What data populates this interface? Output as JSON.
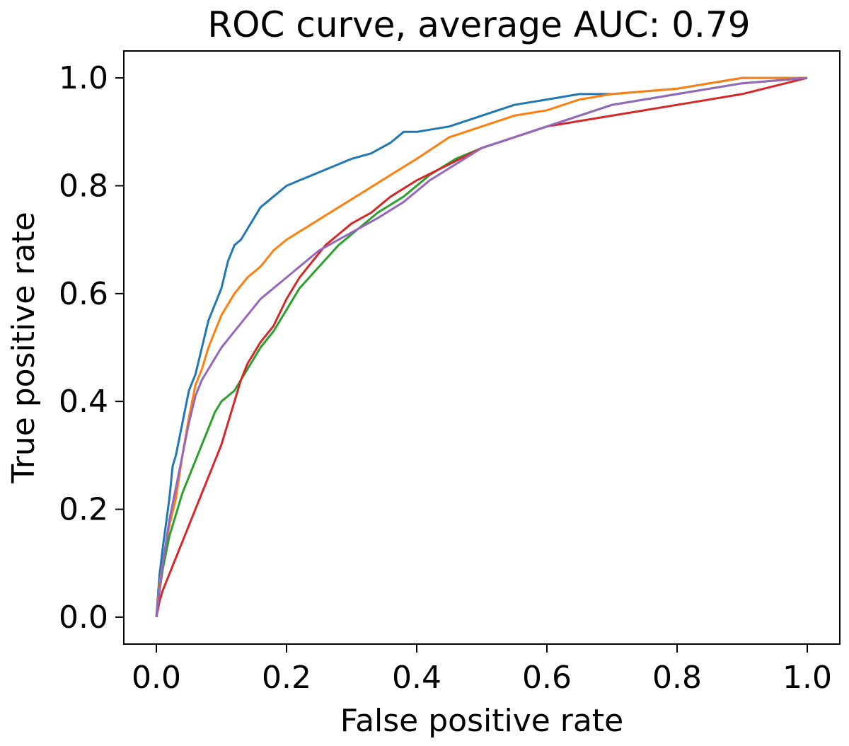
{
  "chart_data": {
    "type": "line",
    "title": "ROC curve, average AUC: 0.79",
    "xlabel": "False positive rate",
    "ylabel": "True positive rate",
    "xlim": [
      -0.05,
      1.05
    ],
    "ylim": [
      -0.05,
      1.05
    ],
    "xticks": [
      0.0,
      0.2,
      0.4,
      0.6,
      0.8,
      1.0
    ],
    "yticks": [
      0.0,
      0.2,
      0.4,
      0.6,
      0.8,
      1.0
    ],
    "xtick_labels": [
      "0.0",
      "0.2",
      "0.4",
      "0.6",
      "0.8",
      "1.0"
    ],
    "ytick_labels": [
      "0.0",
      "0.2",
      "0.4",
      "0.6",
      "0.8",
      "1.0"
    ],
    "grid": false,
    "legend": "none",
    "series": [
      {
        "color": "#1f77b4",
        "x": [
          0.0,
          0.005,
          0.01,
          0.02,
          0.025,
          0.03,
          0.04,
          0.05,
          0.06,
          0.07,
          0.08,
          0.09,
          0.1,
          0.11,
          0.12,
          0.13,
          0.14,
          0.15,
          0.16,
          0.17,
          0.18,
          0.2,
          0.22,
          0.24,
          0.26,
          0.28,
          0.3,
          0.33,
          0.36,
          0.38,
          0.4,
          0.45,
          0.5,
          0.55,
          0.6,
          0.65,
          0.7,
          0.8,
          0.9,
          1.0
        ],
        "y": [
          0.0,
          0.08,
          0.13,
          0.22,
          0.28,
          0.3,
          0.36,
          0.42,
          0.45,
          0.5,
          0.55,
          0.58,
          0.61,
          0.66,
          0.69,
          0.7,
          0.72,
          0.74,
          0.76,
          0.77,
          0.78,
          0.8,
          0.81,
          0.82,
          0.83,
          0.84,
          0.85,
          0.86,
          0.88,
          0.9,
          0.9,
          0.91,
          0.93,
          0.95,
          0.96,
          0.97,
          0.97,
          0.98,
          1.0,
          1.0
        ]
      },
      {
        "color": "#ff7f0e",
        "x": [
          0.0,
          0.005,
          0.01,
          0.02,
          0.03,
          0.04,
          0.05,
          0.06,
          0.07,
          0.08,
          0.09,
          0.1,
          0.12,
          0.14,
          0.16,
          0.18,
          0.2,
          0.24,
          0.28,
          0.32,
          0.36,
          0.4,
          0.45,
          0.5,
          0.55,
          0.6,
          0.65,
          0.7,
          0.8,
          0.9,
          1.0
        ],
        "y": [
          0.0,
          0.06,
          0.1,
          0.17,
          0.22,
          0.3,
          0.37,
          0.43,
          0.46,
          0.5,
          0.53,
          0.56,
          0.6,
          0.63,
          0.65,
          0.68,
          0.7,
          0.73,
          0.76,
          0.79,
          0.82,
          0.85,
          0.89,
          0.91,
          0.93,
          0.94,
          0.96,
          0.97,
          0.98,
          1.0,
          1.0
        ]
      },
      {
        "color": "#2ca02c",
        "x": [
          0.0,
          0.005,
          0.01,
          0.02,
          0.03,
          0.04,
          0.05,
          0.06,
          0.07,
          0.08,
          0.09,
          0.1,
          0.12,
          0.14,
          0.16,
          0.18,
          0.2,
          0.22,
          0.25,
          0.28,
          0.31,
          0.34,
          0.38,
          0.42,
          0.46,
          0.5,
          0.55,
          0.6,
          0.65,
          0.7,
          0.8,
          0.9,
          1.0
        ],
        "y": [
          0.0,
          0.05,
          0.09,
          0.15,
          0.19,
          0.23,
          0.26,
          0.29,
          0.32,
          0.35,
          0.38,
          0.4,
          0.42,
          0.46,
          0.5,
          0.53,
          0.57,
          0.61,
          0.65,
          0.69,
          0.72,
          0.75,
          0.78,
          0.82,
          0.85,
          0.87,
          0.89,
          0.91,
          0.93,
          0.95,
          0.97,
          0.99,
          1.0
        ]
      },
      {
        "color": "#d62728",
        "x": [
          0.0,
          0.005,
          0.01,
          0.02,
          0.03,
          0.04,
          0.05,
          0.06,
          0.07,
          0.08,
          0.09,
          0.1,
          0.11,
          0.12,
          0.13,
          0.14,
          0.15,
          0.16,
          0.18,
          0.2,
          0.22,
          0.24,
          0.26,
          0.28,
          0.3,
          0.33,
          0.36,
          0.4,
          0.45,
          0.5,
          0.55,
          0.6,
          0.65,
          0.7,
          0.8,
          0.9,
          1.0
        ],
        "y": [
          0.0,
          0.03,
          0.05,
          0.08,
          0.11,
          0.14,
          0.17,
          0.2,
          0.23,
          0.26,
          0.29,
          0.32,
          0.36,
          0.4,
          0.44,
          0.47,
          0.49,
          0.51,
          0.54,
          0.59,
          0.63,
          0.66,
          0.69,
          0.71,
          0.73,
          0.75,
          0.78,
          0.81,
          0.84,
          0.87,
          0.89,
          0.91,
          0.92,
          0.93,
          0.95,
          0.97,
          1.0
        ]
      },
      {
        "color": "#9467bd",
        "x": [
          0.0,
          0.005,
          0.01,
          0.02,
          0.03,
          0.04,
          0.05,
          0.06,
          0.07,
          0.08,
          0.09,
          0.1,
          0.12,
          0.14,
          0.16,
          0.18,
          0.2,
          0.22,
          0.25,
          0.28,
          0.31,
          0.34,
          0.38,
          0.42,
          0.46,
          0.5,
          0.55,
          0.6,
          0.65,
          0.7,
          0.8,
          0.9,
          1.0
        ],
        "y": [
          0.0,
          0.05,
          0.1,
          0.18,
          0.24,
          0.3,
          0.36,
          0.41,
          0.44,
          0.46,
          0.48,
          0.5,
          0.53,
          0.56,
          0.59,
          0.61,
          0.63,
          0.65,
          0.68,
          0.7,
          0.72,
          0.74,
          0.77,
          0.81,
          0.84,
          0.87,
          0.89,
          0.91,
          0.93,
          0.95,
          0.97,
          0.99,
          1.0
        ]
      }
    ]
  }
}
